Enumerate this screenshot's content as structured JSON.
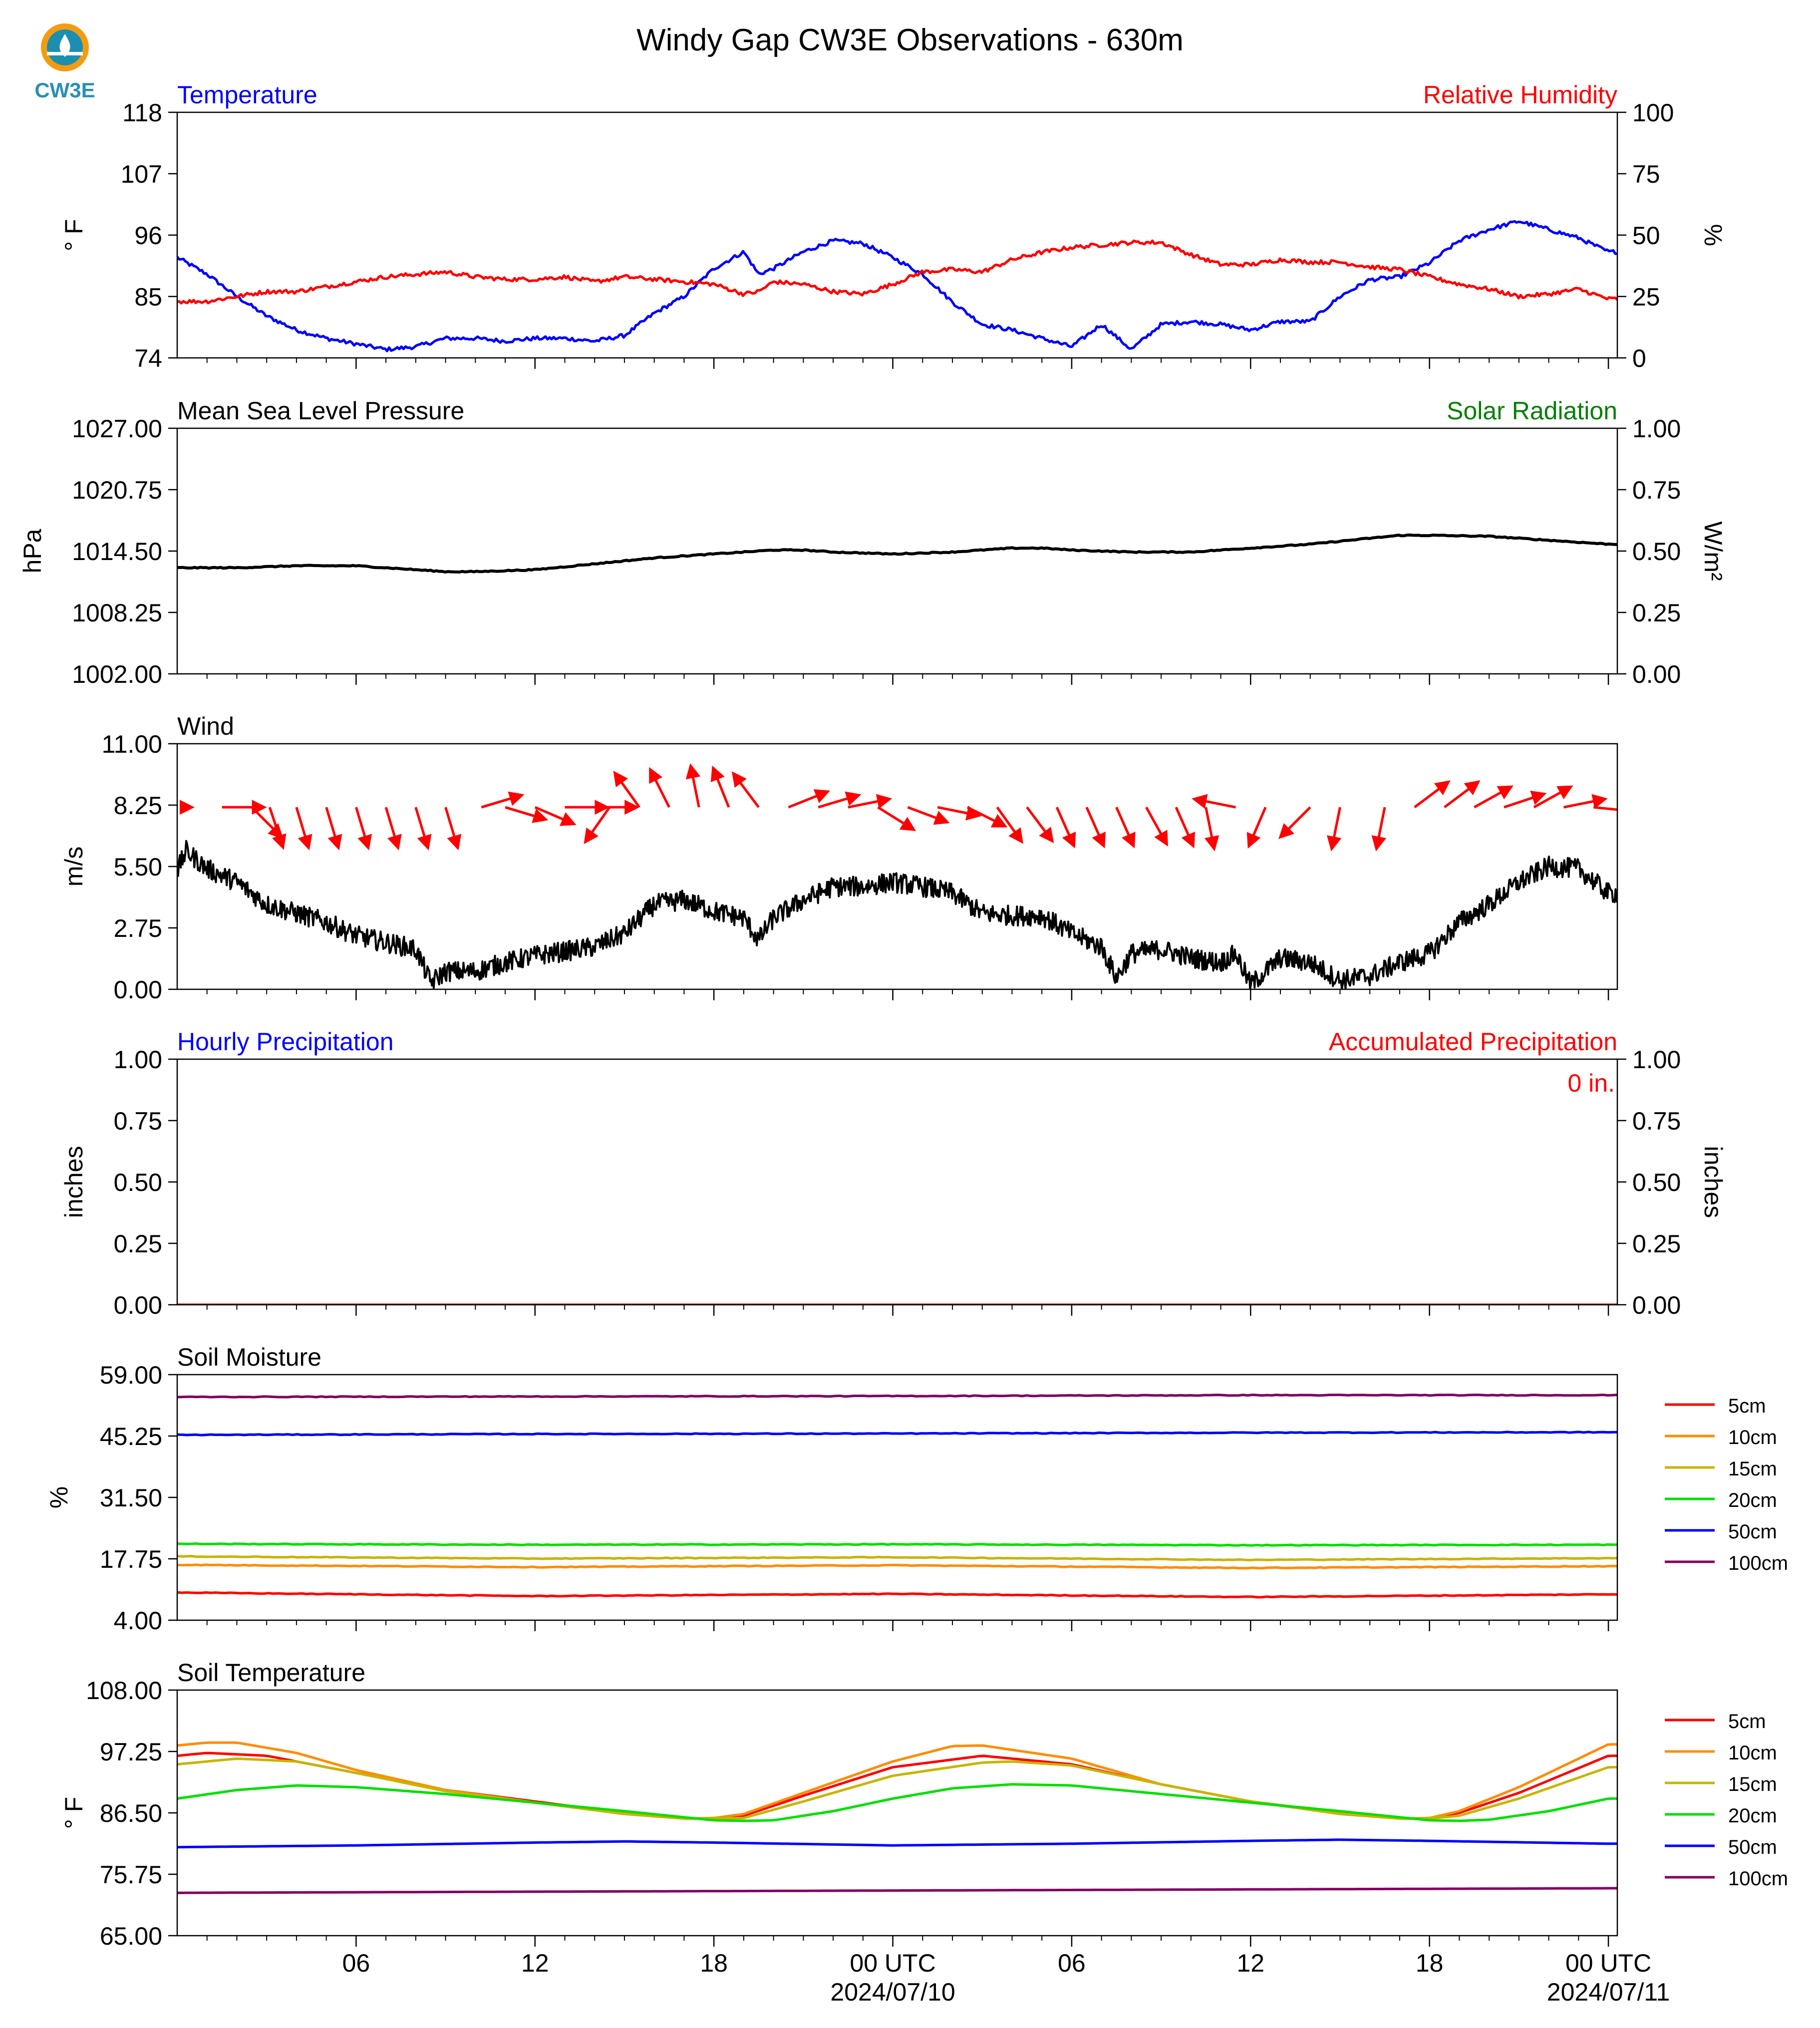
{
  "logo": {
    "text": "CW3E",
    "colors": {
      "orange": "#f39c12",
      "teal": "#1a8fb0",
      "text": "#2a8fb5"
    }
  },
  "title": "Windy Gap CW3E Observations - 630m",
  "time_axis": {
    "tick_labels": [
      "06",
      "12",
      "18",
      "00 UTC",
      "06",
      "12",
      "18",
      "00 UTC"
    ],
    "date_labels": [
      "2024/07/10",
      "2024/07/11"
    ]
  },
  "colors": {
    "blue": "#0000ff",
    "red": "#ff0000",
    "green": "#008000",
    "black": "#000000"
  },
  "chart_data": [
    {
      "id": "temp_rh",
      "type": "line",
      "left_title": "Temperature",
      "left_title_color": "#0000ff",
      "right_title": "Relative Humidity",
      "right_title_color": "#ff0000",
      "ylabel": "° F",
      "ylabel_right": "%",
      "ylim": [
        74,
        118
      ],
      "ylim_right": [
        0,
        100
      ],
      "yticks": [
        "118",
        "107",
        "96",
        "85",
        "74"
      ],
      "yticks_right": [
        "100",
        "75",
        "50",
        "25",
        "0"
      ],
      "x_hours": [
        0,
        48
      ],
      "series": [
        {
          "name": "Temperature",
          "axis": "left",
          "color": "#0000ff",
          "x": [
            0,
            1,
            2,
            3,
            4,
            5,
            6,
            7,
            8,
            9,
            10,
            11,
            12,
            13,
            14,
            15,
            16,
            17,
            18,
            19,
            19.5,
            20,
            21,
            22,
            23,
            24,
            25,
            26,
            27,
            28,
            29,
            30,
            31,
            32,
            33,
            34,
            35,
            36,
            37,
            38,
            39,
            40,
            41,
            42,
            43,
            44,
            45,
            46,
            47,
            48
          ],
          "y": [
            92,
            89,
            85,
            81.5,
            79,
            77.5,
            76.5,
            75.5,
            76,
            77.5,
            77.5,
            77,
            77.5,
            77.5,
            77,
            78,
            82,
            85,
            90,
            93,
            89,
            90,
            93,
            95,
            94.5,
            92,
            89,
            84,
            80,
            79,
            77.5,
            76,
            80,
            75.5,
            80,
            80.5,
            80,
            79,
            80.5,
            80.5,
            85,
            88,
            88.5,
            91,
            95,
            97,
            98.5,
            97,
            95.5,
            93
          ]
        },
        {
          "name": "Relative Humidity",
          "axis": "right",
          "color": "#ff0000",
          "x": [
            0,
            1,
            2,
            3,
            4,
            5,
            6,
            7,
            8,
            9,
            10,
            11,
            12,
            13,
            14,
            15,
            16,
            17,
            18,
            19,
            19.5,
            20,
            21,
            22,
            23,
            24,
            25,
            26,
            27,
            28,
            29,
            30,
            31,
            32,
            33,
            34,
            35,
            36,
            37,
            38,
            39,
            40,
            41,
            42,
            43,
            44,
            45,
            46,
            47,
            48
          ],
          "y": [
            23,
            23,
            25,
            27,
            27,
            29,
            31,
            33,
            34,
            35,
            33,
            32,
            32,
            33,
            31,
            33,
            32,
            31,
            30,
            26,
            27,
            31,
            30,
            27,
            26,
            30,
            35,
            36,
            35,
            40,
            43,
            45,
            46,
            47,
            47,
            42,
            38,
            38,
            40,
            39,
            39,
            37,
            36,
            33,
            30,
            28,
            25,
            26,
            28,
            24
          ]
        }
      ]
    },
    {
      "id": "pressure_solar",
      "type": "line",
      "left_title": "Mean Sea Level Pressure",
      "left_title_color": "#000000",
      "right_title": "Solar Radiation",
      "right_title_color": "#008000",
      "ylabel": "hPa",
      "ylabel_right": "W/m²",
      "ylim": [
        1002,
        1027
      ],
      "ylim_right": [
        0,
        1
      ],
      "yticks": [
        "1027.00",
        "1020.75",
        "1014.50",
        "1008.25",
        "1002.00"
      ],
      "yticks_right": [
        "1.00",
        "0.75",
        "0.50",
        "0.25",
        "0.00"
      ],
      "series": [
        {
          "name": "Mean Sea Level Pressure",
          "axis": "left",
          "color": "#000000",
          "x": [
            0,
            2,
            4,
            6,
            8,
            9,
            10,
            12,
            14,
            16,
            18,
            20,
            21,
            22,
            24,
            26,
            28,
            29,
            30,
            32,
            34,
            36,
            38,
            40,
            41,
            42,
            44,
            46,
            48
          ],
          "y": [
            1012.8,
            1012.8,
            1013.0,
            1013.0,
            1012.6,
            1012.4,
            1012.4,
            1012.6,
            1013.2,
            1013.8,
            1014.2,
            1014.6,
            1014.6,
            1014.4,
            1014.2,
            1014.4,
            1014.8,
            1014.8,
            1014.6,
            1014.4,
            1014.4,
            1014.8,
            1015.2,
            1015.8,
            1016.1,
            1016.1,
            1016.0,
            1015.6,
            1015.2
          ]
        }
      ]
    },
    {
      "id": "wind",
      "type": "line",
      "left_title": "Wind",
      "left_title_color": "#000000",
      "ylabel": "m/s",
      "ylim": [
        0,
        11
      ],
      "yticks": [
        "11.00",
        "8.25",
        "5.50",
        "2.75",
        "0.00"
      ],
      "series": [
        {
          "name": "Wind",
          "axis": "left",
          "color": "#000000",
          "x": [
            0,
            0.3,
            1,
            2,
            3,
            4,
            5,
            6,
            7,
            8,
            8.5,
            9,
            10,
            11,
            12,
            13,
            14,
            15,
            16,
            17,
            18,
            19,
            19.5,
            20,
            21,
            22,
            23,
            24,
            25,
            26,
            27,
            28,
            29,
            30,
            31,
            31.5,
            32,
            33,
            34,
            35,
            35.5,
            36,
            37,
            38,
            39,
            40,
            41,
            42,
            43,
            44,
            45,
            46,
            47,
            48
          ],
          "y": [
            5.3,
            6.2,
            5.4,
            4.8,
            3.8,
            3.4,
            3.0,
            2.4,
            2.1,
            1.8,
            0.3,
            0.8,
            0.8,
            1.2,
            1.5,
            1.7,
            1.9,
            2.5,
            3.8,
            4.0,
            3.5,
            3.2,
            2.2,
            3.2,
            4.0,
            4.6,
            4.6,
            4.8,
            4.6,
            4.3,
            3.4,
            3.3,
            3.3,
            2.5,
            1.9,
            0.5,
            1.6,
            1.8,
            1.4,
            1.2,
            1.6,
            0.2,
            1.4,
            1.2,
            0.4,
            0.6,
            1.2,
            1.6,
            3.0,
            3.8,
            4.8,
            5.5,
            5.4,
            4.3
          ]
        }
      ],
      "arrows": {
        "color": "#ff0000",
        "speed_y": 8.6,
        "x": [
          0.5,
          1.5,
          2.5,
          3.1,
          4,
          5,
          6,
          7,
          8,
          9,
          10.2,
          11,
          12,
          13,
          14,
          14.5,
          15.5,
          16.5,
          17.5,
          18.5,
          19.5,
          20.5,
          21.5,
          22.5,
          23.5,
          24.5,
          25.5,
          26.5,
          27.5,
          28.5,
          29.5,
          30.5,
          31.5,
          32.5,
          33.5,
          34.5,
          35.5,
          36.5,
          38,
          39,
          40.5,
          41.5,
          42.5,
          43.5,
          44.5,
          45.5,
          46.5,
          47.5,
          48.3
        ],
        "u": [
          0,
          1,
          0.5,
          0.3,
          0.3,
          0.3,
          0.3,
          0.3,
          0.3,
          0.3,
          1,
          1,
          0.7,
          1,
          1,
          -0.7,
          -0.5,
          -0.4,
          -0.2,
          -0.4,
          -0.6,
          1,
          1,
          1,
          0.8,
          0.8,
          1,
          0.8,
          0.5,
          0.6,
          0.4,
          0.4,
          0.4,
          0.5,
          0.4,
          0.2,
          -1,
          -0.3,
          -0.6,
          -0.2,
          -0.2,
          0.8,
          0.8,
          0.9,
          0.9,
          0.9,
          1,
          1,
          0.9
        ],
        "v": [
          0,
          0,
          -0.5,
          -0.9,
          -1,
          -1,
          -1,
          -1,
          -1,
          -1,
          0.3,
          -0.3,
          -0.3,
          0,
          0,
          -1,
          0.7,
          0.8,
          1,
          1,
          0.8,
          0.4,
          0.3,
          0.2,
          -0.5,
          -0.3,
          -0.2,
          -0.4,
          -0.7,
          -0.8,
          -0.9,
          -0.9,
          -0.9,
          -0.9,
          -0.9,
          -1,
          0.2,
          -0.7,
          -0.6,
          -1,
          -1,
          0.6,
          0.6,
          0.5,
          0.3,
          0.5,
          0.2,
          -0.1,
          -0.5
        ]
      }
    },
    {
      "id": "precip",
      "type": "line",
      "left_title": "Hourly Precipitation",
      "left_title_color": "#0000ff",
      "right_title": "Accumulated Precipitation",
      "right_title_color": "#ff0000",
      "annotation": "0 in.",
      "annotation_color": "#ff0000",
      "ylabel": "inches",
      "ylabel_right": "inches",
      "ylim": [
        0,
        1
      ],
      "ylim_right": [
        0,
        1
      ],
      "yticks": [
        "1.00",
        "0.75",
        "0.50",
        "0.25",
        "0.00"
      ],
      "yticks_right": [
        "1.00",
        "0.75",
        "0.50",
        "0.25",
        "0.00"
      ],
      "series": [
        {
          "name": "Hourly Precipitation",
          "axis": "left",
          "color": "#0000ff",
          "x": [
            0,
            48
          ],
          "y": [
            0,
            0
          ]
        },
        {
          "name": "Accumulated Precipitation",
          "axis": "right",
          "color": "#ff0000",
          "x": [
            0,
            48
          ],
          "y": [
            0,
            0
          ]
        }
      ]
    },
    {
      "id": "soil_moisture",
      "type": "line",
      "left_title": "Soil Moisture",
      "left_title_color": "#000000",
      "ylabel": "%",
      "ylim": [
        4,
        59
      ],
      "yticks": [
        "59.00",
        "45.25",
        "31.50",
        "17.75",
        "4.00"
      ],
      "series": [
        {
          "name": "5cm",
          "color": "#ff0000",
          "x": [
            0,
            12,
            24,
            36,
            48
          ],
          "y": [
            10.2,
            9.4,
            9.9,
            9.2,
            9.8
          ]
        },
        {
          "name": "10cm",
          "color": "#ff8c00",
          "x": [
            0,
            12,
            24,
            36,
            48
          ],
          "y": [
            16.4,
            15.9,
            16.3,
            15.7,
            16.1
          ]
        },
        {
          "name": "15cm",
          "color": "#c8b400",
          "x": [
            0,
            12,
            24,
            36,
            48
          ],
          "y": [
            18.3,
            17.8,
            18.1,
            17.5,
            17.9
          ]
        },
        {
          "name": "20cm",
          "color": "#00e000",
          "x": [
            0,
            12,
            24,
            36,
            48
          ],
          "y": [
            21.1,
            20.9,
            21.0,
            20.8,
            20.9
          ]
        },
        {
          "name": "50cm",
          "color": "#0000ff",
          "x": [
            0,
            12,
            24,
            36,
            48
          ],
          "y": [
            45.5,
            45.7,
            45.8,
            46.0,
            46.1
          ]
        },
        {
          "name": "100cm",
          "color": "#800060",
          "x": [
            0,
            12,
            24,
            36,
            48
          ],
          "y": [
            54.0,
            54.1,
            54.2,
            54.4,
            54.4
          ]
        }
      ]
    },
    {
      "id": "soil_temp",
      "type": "line",
      "left_title": "Soil Temperature",
      "left_title_color": "#000000",
      "ylabel": "° F",
      "ylim": [
        65,
        108
      ],
      "yticks": [
        "108.00",
        "97.25",
        "86.50",
        "75.75",
        "65.00"
      ],
      "series": [
        {
          "name": "5cm",
          "color": "#ff0000",
          "x": [
            0,
            1,
            3,
            6,
            9,
            12,
            15,
            17,
            18,
            19,
            21,
            24,
            27,
            30,
            33,
            36,
            39,
            41,
            42,
            43,
            45,
            48
          ],
          "y": [
            96.5,
            97,
            96.5,
            93.5,
            90.5,
            88.5,
            86.5,
            85.5,
            85.5,
            86,
            89.5,
            94.5,
            96.5,
            95,
            91.5,
            88.5,
            86.5,
            85.5,
            85.5,
            86.5,
            90,
            96.5
          ]
        },
        {
          "name": "10cm",
          "color": "#ff8c00",
          "x": [
            0,
            1,
            2,
            4,
            6,
            9,
            12,
            15,
            17,
            18,
            19,
            21,
            24,
            26,
            27,
            30,
            33,
            36,
            39,
            41,
            42,
            43,
            45,
            48
          ],
          "y": [
            98.3,
            98.8,
            98.8,
            97,
            94,
            90.5,
            88.3,
            86.5,
            85.5,
            85.6,
            86.3,
            90,
            95.5,
            98.2,
            98.3,
            96,
            91.5,
            88.5,
            86.5,
            85.5,
            85.6,
            86.8,
            91,
            98.5
          ]
        },
        {
          "name": "15cm",
          "color": "#c8b400",
          "x": [
            0,
            2,
            4,
            6,
            9,
            12,
            15,
            17,
            18,
            19,
            21,
            24,
            27,
            28,
            30,
            33,
            36,
            39,
            41,
            42,
            43,
            45,
            48
          ],
          "y": [
            95,
            96,
            95.5,
            93.5,
            90.3,
            88.3,
            86.3,
            85.5,
            85.5,
            85.6,
            88.5,
            93,
            95.3,
            95.5,
            94.8,
            91.5,
            88.5,
            86.3,
            85.5,
            85.5,
            86,
            89,
            94.5
          ]
        },
        {
          "name": "20cm",
          "color": "#00e000",
          "x": [
            0,
            2,
            4,
            6,
            9,
            12,
            15,
            18,
            19,
            20,
            22,
            24,
            26,
            28,
            30,
            33,
            36,
            39,
            42,
            43,
            44,
            46,
            48
          ],
          "y": [
            89,
            90.5,
            91.3,
            91,
            89.8,
            88.3,
            86.8,
            85.2,
            85.1,
            85.2,
            86.8,
            89,
            90.8,
            91.5,
            91.3,
            89.8,
            88.3,
            86.8,
            85.2,
            85.1,
            85.3,
            86.8,
            89
          ]
        },
        {
          "name": "50cm",
          "color": "#0000ff",
          "x": [
            0,
            6,
            12,
            15,
            18,
            24,
            30,
            36,
            39,
            42,
            48
          ],
          "y": [
            80.5,
            80.8,
            81.3,
            81.5,
            81.3,
            80.8,
            81.1,
            81.6,
            81.8,
            81.6,
            81.1
          ]
        },
        {
          "name": "100cm",
          "color": "#800060",
          "x": [
            0,
            12,
            24,
            36,
            48
          ],
          "y": [
            72.5,
            72.7,
            72.9,
            73.1,
            73.3
          ]
        }
      ]
    }
  ]
}
